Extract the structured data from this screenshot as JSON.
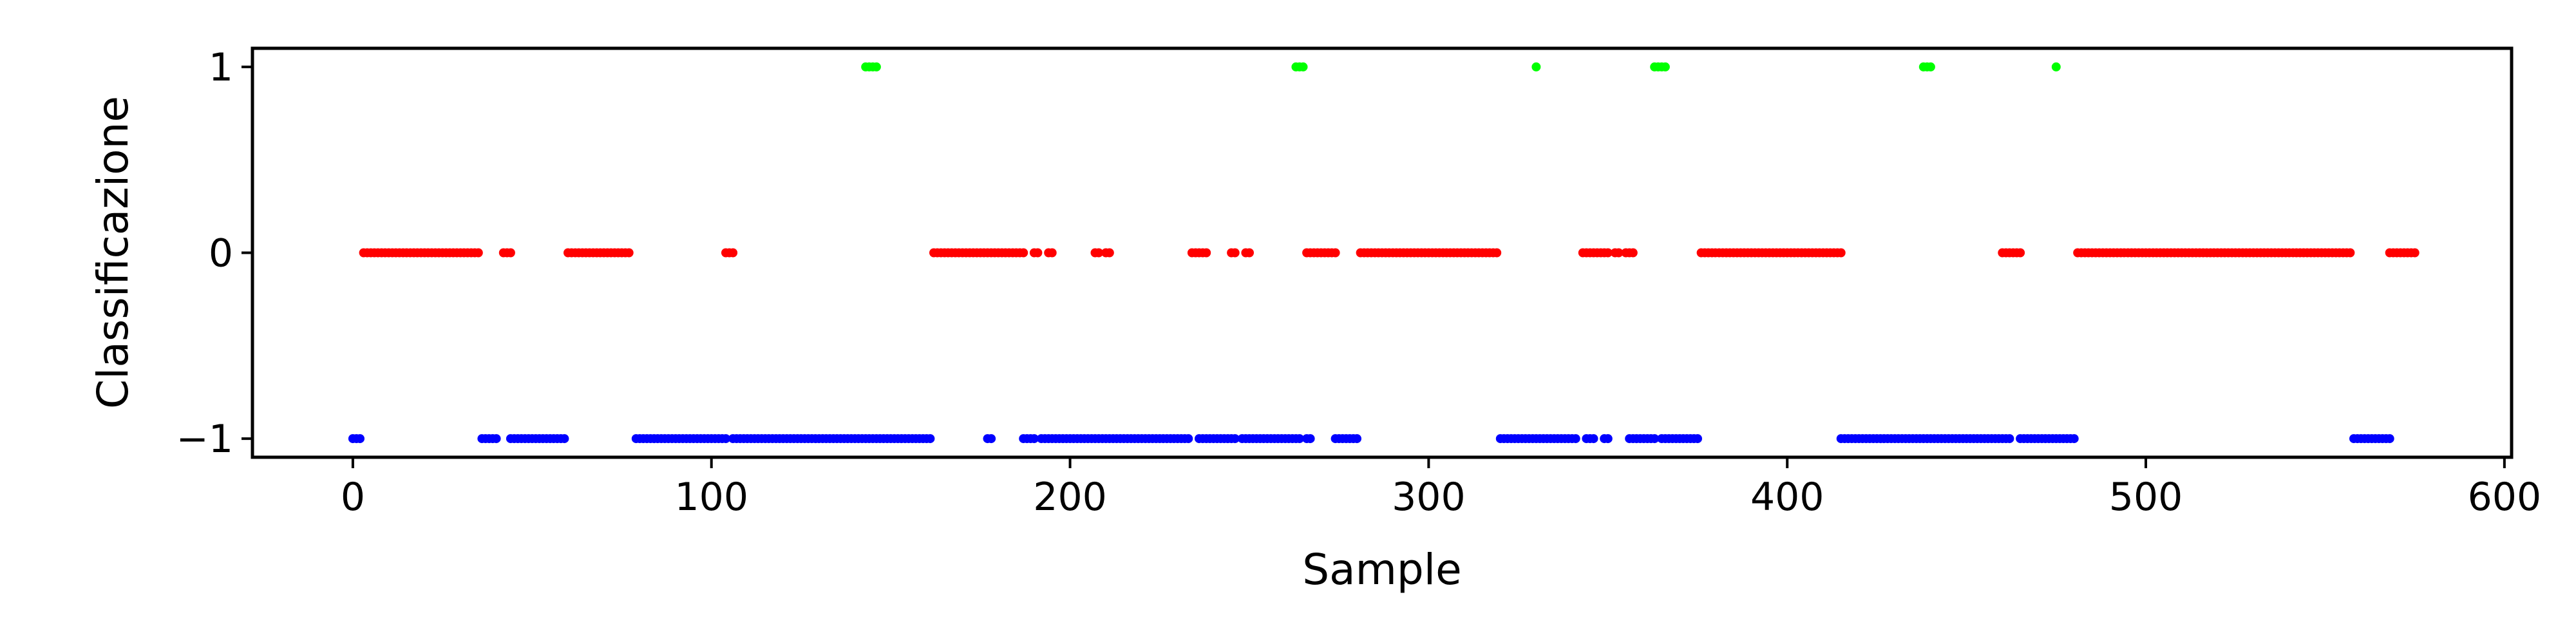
{
  "chart_data": {
    "type": "scatter",
    "xlabel": "Sample",
    "ylabel": "Classificazione",
    "xlim": [
      -28,
      602
    ],
    "ylim": [
      -1.1,
      1.1
    ],
    "xticks": [
      0,
      100,
      200,
      300,
      400,
      500,
      600
    ],
    "yticks": [
      -1,
      0,
      1
    ],
    "ytick_labels": [
      "−1",
      "0",
      "1"
    ],
    "grid": false,
    "series": [
      {
        "class": 1,
        "color": "#00ff00",
        "x": [
          143,
          144,
          145,
          146,
          263,
          264,
          265,
          330,
          363,
          364,
          365,
          366,
          438,
          439,
          440,
          475
        ]
      },
      {
        "class": 0,
        "color": "#ff0000",
        "ranges": [
          [
            3,
            35
          ],
          [
            42,
            44
          ],
          [
            60,
            77
          ],
          [
            104,
            106
          ],
          [
            162,
            180
          ],
          [
            181,
            187
          ],
          [
            190,
            191
          ],
          [
            194,
            195
          ],
          [
            207,
            208
          ],
          [
            210,
            211
          ],
          [
            234,
            238
          ],
          [
            245,
            246
          ],
          [
            249,
            250
          ],
          [
            266,
            274
          ],
          [
            281,
            319
          ],
          [
            343,
            350
          ],
          [
            352,
            353
          ],
          [
            355,
            357
          ],
          [
            376,
            415
          ],
          [
            460,
            465
          ],
          [
            481,
            557
          ],
          [
            568,
            575
          ]
        ]
      },
      {
        "class": -1,
        "color": "#0000ff",
        "ranges": [
          [
            0,
            2
          ],
          [
            36,
            40
          ],
          [
            44,
            59
          ],
          [
            79,
            104
          ],
          [
            106,
            161
          ],
          [
            177,
            178
          ],
          [
            187,
            190
          ],
          [
            192,
            233
          ],
          [
            236,
            246
          ],
          [
            248,
            264
          ],
          [
            266,
            267
          ],
          [
            274,
            280
          ],
          [
            320,
            341
          ],
          [
            344,
            346
          ],
          [
            349,
            350
          ],
          [
            356,
            363
          ],
          [
            365,
            375
          ],
          [
            415,
            462
          ],
          [
            465,
            480
          ],
          [
            558,
            568
          ]
        ]
      }
    ]
  }
}
